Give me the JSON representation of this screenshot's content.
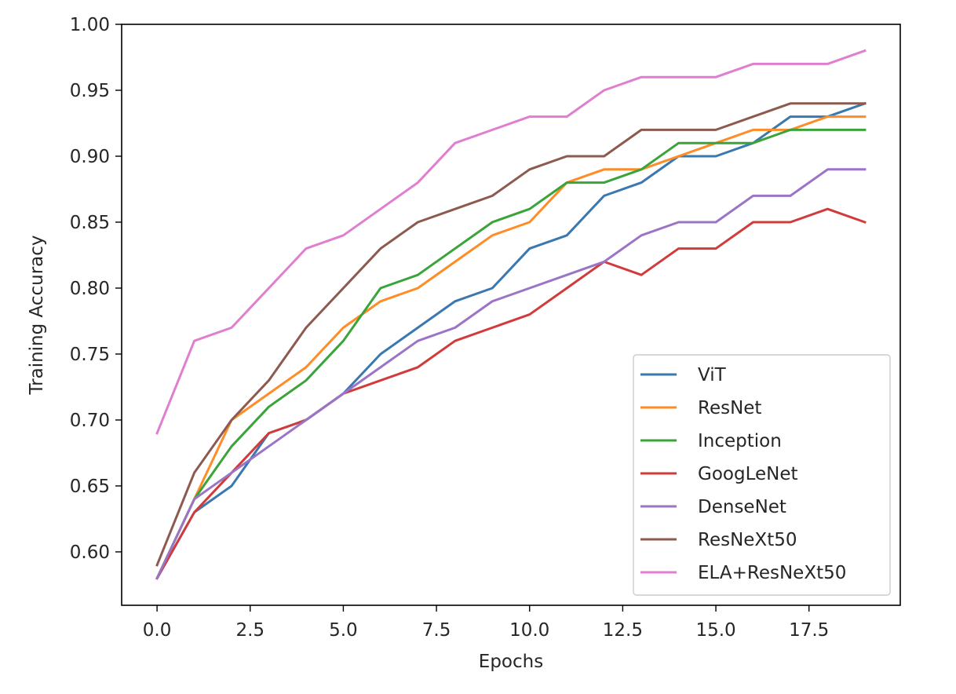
{
  "chart_data": {
    "type": "line",
    "title": "",
    "xlabel": "Epochs",
    "ylabel": "Training Accuracy",
    "xlim": [
      -0.95,
      19.95
    ],
    "ylim": [
      0.5595,
      1.0
    ],
    "xticks": [
      0,
      2.5,
      5,
      7.5,
      10,
      12.5,
      15,
      17.5
    ],
    "xtick_labels": [
      "0.0",
      "2.5",
      "5.0",
      "7.5",
      "10.0",
      "12.5",
      "15.0",
      "17.5"
    ],
    "yticks": [
      0.6,
      0.65,
      0.7,
      0.75,
      0.8,
      0.85,
      0.9,
      0.95,
      1.0
    ],
    "ytick_labels": [
      "0.60",
      "0.65",
      "0.70",
      "0.75",
      "0.80",
      "0.85",
      "0.90",
      "0.95",
      "1.00"
    ],
    "grid": false,
    "legend_position": "lower-right",
    "x": [
      0,
      1,
      2,
      3,
      4,
      5,
      6,
      7,
      8,
      9,
      10,
      11,
      12,
      13,
      14,
      15,
      16,
      17,
      18,
      19
    ],
    "series": [
      {
        "name": "ViT",
        "color": "#3a78b0",
        "values": [
          0.58,
          0.63,
          0.65,
          0.69,
          0.7,
          0.72,
          0.75,
          0.77,
          0.79,
          0.8,
          0.83,
          0.84,
          0.87,
          0.88,
          0.9,
          0.9,
          0.91,
          0.93,
          0.93,
          0.94
        ]
      },
      {
        "name": "ResNet",
        "color": "#ff8c26",
        "values": [
          0.58,
          0.64,
          0.7,
          0.72,
          0.74,
          0.77,
          0.79,
          0.8,
          0.82,
          0.84,
          0.85,
          0.88,
          0.89,
          0.89,
          0.9,
          0.91,
          0.92,
          0.92,
          0.93,
          0.93
        ]
      },
      {
        "name": "Inception",
        "color": "#3aa43a",
        "values": [
          0.58,
          0.64,
          0.68,
          0.71,
          0.73,
          0.76,
          0.8,
          0.81,
          0.83,
          0.85,
          0.86,
          0.88,
          0.88,
          0.89,
          0.91,
          0.91,
          0.91,
          0.92,
          0.92,
          0.92
        ]
      },
      {
        "name": "GoogLeNet",
        "color": "#d13b3b",
        "values": [
          0.58,
          0.63,
          0.66,
          0.69,
          0.7,
          0.72,
          0.73,
          0.74,
          0.76,
          0.77,
          0.78,
          0.8,
          0.82,
          0.81,
          0.83,
          0.83,
          0.85,
          0.85,
          0.86,
          0.85
        ]
      },
      {
        "name": "DenseNet",
        "color": "#9b74c6",
        "values": [
          0.58,
          0.64,
          0.66,
          0.68,
          0.7,
          0.72,
          0.74,
          0.76,
          0.77,
          0.79,
          0.8,
          0.81,
          0.82,
          0.84,
          0.85,
          0.85,
          0.87,
          0.87,
          0.89,
          0.89
        ]
      },
      {
        "name": "ResNeXt50",
        "color": "#8c5a4e",
        "values": [
          0.59,
          0.66,
          0.7,
          0.73,
          0.77,
          0.8,
          0.83,
          0.85,
          0.86,
          0.87,
          0.89,
          0.9,
          0.9,
          0.92,
          0.92,
          0.92,
          0.93,
          0.94,
          0.94,
          0.94
        ]
      },
      {
        "name": "ELA+ResNeXt50",
        "color": "#e07fcf",
        "values": [
          0.69,
          0.76,
          0.77,
          0.8,
          0.83,
          0.84,
          0.86,
          0.88,
          0.91,
          0.92,
          0.93,
          0.93,
          0.95,
          0.96,
          0.96,
          0.96,
          0.97,
          0.97,
          0.97,
          0.98
        ]
      }
    ]
  }
}
